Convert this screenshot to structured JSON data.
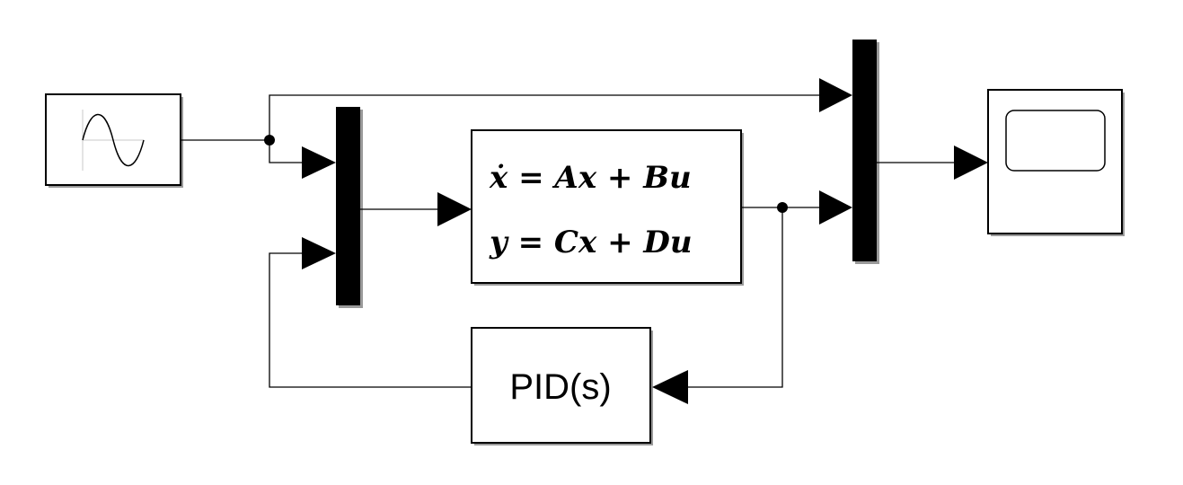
{
  "diagram": {
    "blocks": {
      "sine_wave": {
        "icon": "sine-wave-icon"
      },
      "state_space": {
        "line1": "ẋ = Ax + Bu",
        "line2": "y = Cx + Du"
      },
      "pid_controller": {
        "label": "PID(s)"
      },
      "scope": {
        "icon": "scope-screen-icon"
      },
      "mux_input": {
        "inputs": 2
      },
      "mux_output": {
        "inputs": 2
      }
    },
    "colors": {
      "line": "#000000",
      "block_fill": "#ffffff",
      "shadow": "#9a9a9a"
    }
  }
}
